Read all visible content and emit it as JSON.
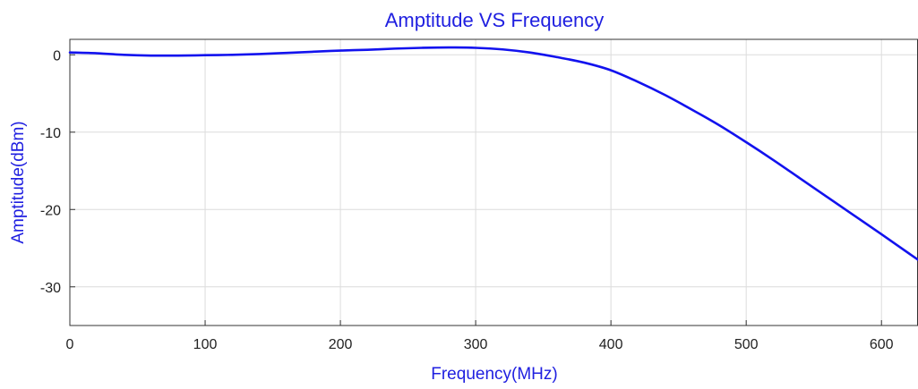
{
  "chart_data": {
    "type": "line",
    "title": "Amptitude VS Frequency",
    "xlabel": "Frequency(MHz)",
    "ylabel": "Amptitude(dBm)",
    "xlim": [
      0,
      627
    ],
    "ylim": [
      -35,
      2
    ],
    "xticks": [
      0,
      100,
      200,
      300,
      400,
      500,
      600
    ],
    "yticks": [
      0,
      -10,
      -20,
      -30
    ],
    "grid": true,
    "series": [
      {
        "color": "#1212ee",
        "x": [
          0,
          20,
          40,
          60,
          80,
          100,
          120,
          140,
          160,
          180,
          200,
          220,
          240,
          260,
          280,
          300,
          320,
          340,
          360,
          380,
          400,
          420,
          440,
          460,
          480,
          500,
          520,
          540,
          560,
          580,
          600,
          627
        ],
        "y": [
          0.3,
          0.2,
          0.0,
          -0.1,
          -0.1,
          -0.05,
          0.0,
          0.1,
          0.25,
          0.4,
          0.55,
          0.65,
          0.8,
          0.9,
          0.95,
          0.9,
          0.7,
          0.3,
          -0.3,
          -1.0,
          -2.0,
          -3.5,
          -5.2,
          -7.1,
          -9.1,
          -11.3,
          -13.6,
          -16.0,
          -18.4,
          -20.8,
          -23.2,
          -26.5
        ]
      }
    ]
  }
}
